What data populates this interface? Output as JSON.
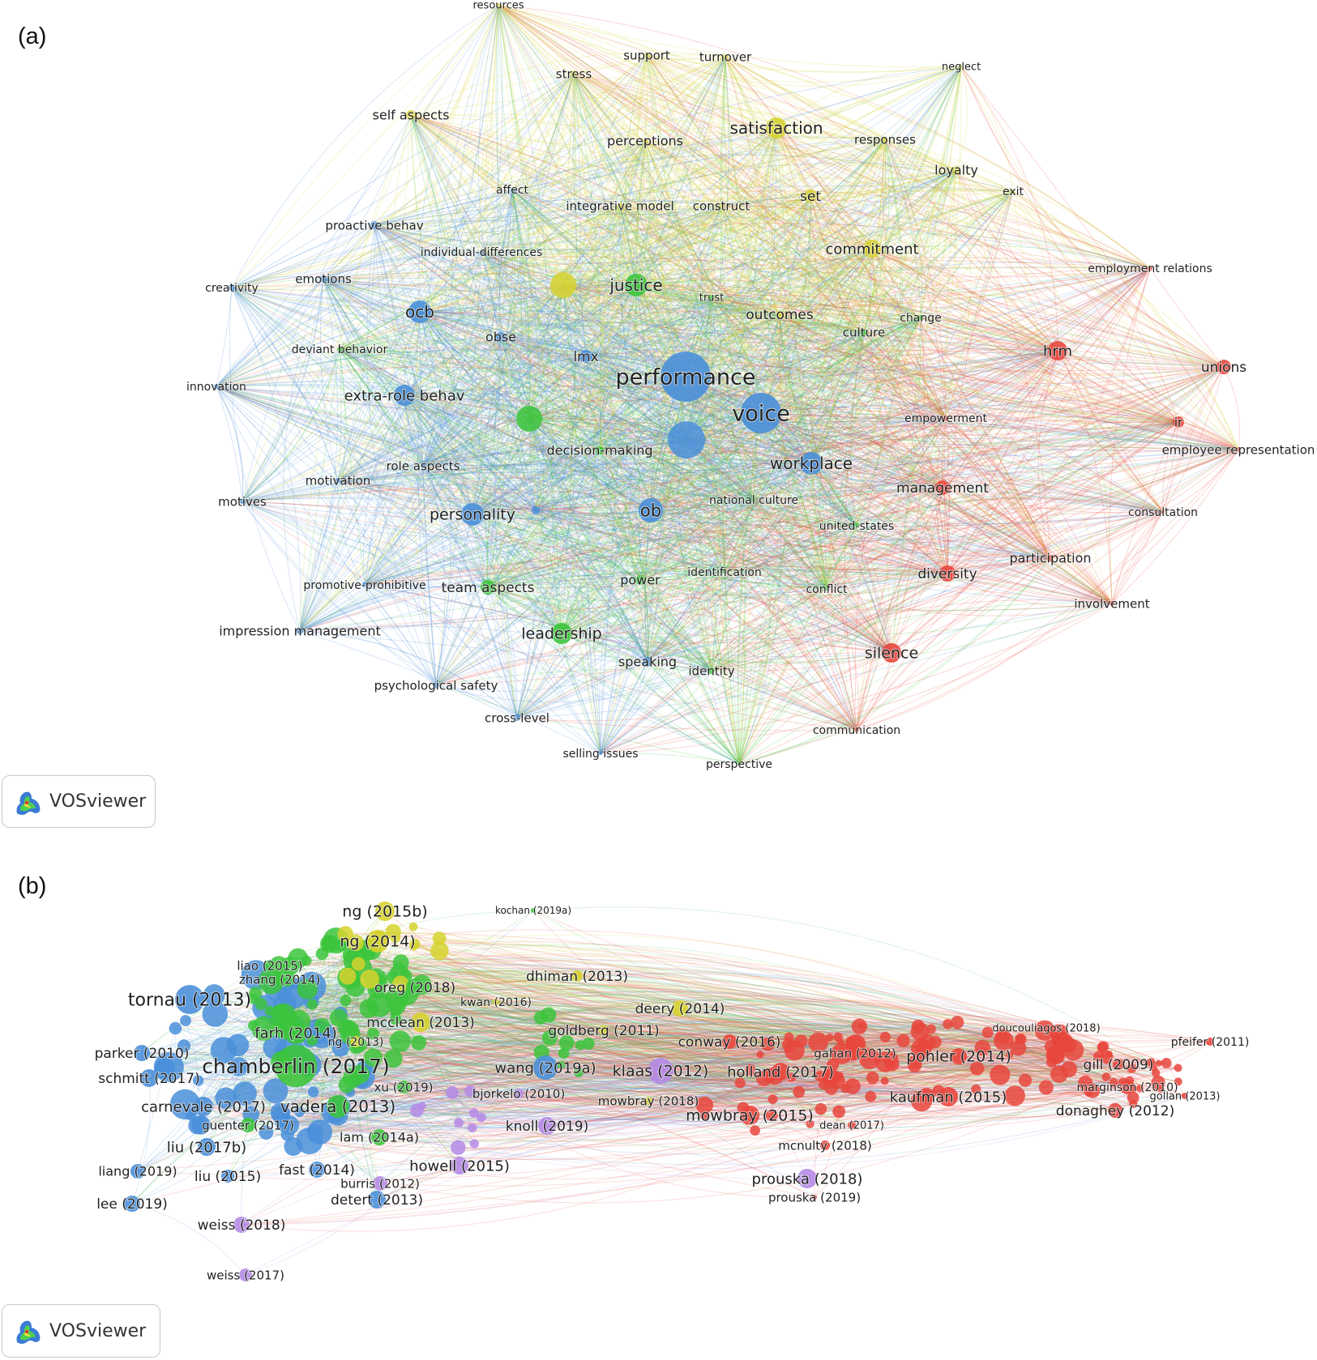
{
  "panel_a": {
    "letter": "(a)",
    "brand": "VOSviewer",
    "labels": [
      "resources",
      "support",
      "turnover",
      "stress",
      "neglect",
      "self aspects",
      "satisfaction",
      "perceptions",
      "responses",
      "loyalty",
      "affect",
      "integrative model",
      "construct",
      "set",
      "exit",
      "proactive behav",
      "individual-differences",
      "commitment",
      "employment relations",
      "creativity",
      "emotions",
      "justice",
      "trust",
      "ocb",
      "outcomes",
      "change",
      "culture",
      "deviant behavior",
      "obse",
      "hrm",
      "lmx",
      "unions",
      "innovation",
      "performance",
      "extra-role behav",
      "voice",
      "empowerment",
      "ir",
      "employee representation",
      "decision-making",
      "workplace",
      "role aspects",
      "motivation",
      "management",
      "motives",
      "personality",
      "ob",
      "national culture",
      "united-states",
      "consultation",
      "participation",
      "identification",
      "diversity",
      "promotive-prohibitive",
      "team aspects",
      "power",
      "conflict",
      "involvement",
      "impression management",
      "leadership",
      "silence",
      "speaking",
      "identity",
      "psychological safety",
      "cross-level",
      "communication",
      "selling issues",
      "perspective"
    ]
  },
  "panel_b": {
    "letter": "(b)",
    "brand": "VOSviewer",
    "labels": [
      "ng (2015b)",
      "kochan (2019a)",
      "ng (2014)",
      "liao (2015)",
      "zhang (2014)",
      "dhiman (2013)",
      "oreg (2018)",
      "tornau (2013)",
      "kwan (2016)",
      "deery (2014)",
      "mcclean (2013)",
      "farh (2014)",
      "goldberg (2011)",
      "doucouliagos (2018)",
      "ng (2013)",
      "conway (2016)",
      "pfeifer (2011)",
      "parker (2010)",
      "pohler (2014)",
      "gahan (2012)",
      "chamberlin (2017)",
      "gill (2009)",
      "klaas (2012)",
      "holland (2017)",
      "wang (2019a)",
      "schmitt (2017)",
      "xu (2019)",
      "bjorkelo (2010)",
      "marginson (2010)",
      "gollan (2013)",
      "mowbray (2018)",
      "kaufman (2015)",
      "carnevale (2017)",
      "vadera (2013)",
      "donaghey (2012)",
      "mowbray (2015)",
      "guenter (2017)",
      "knoll (2019)",
      "dean (2017)",
      "lam (2014a)",
      "liu (2017b)",
      "mcnulty (2018)",
      "fast (2014)",
      "howell (2015)",
      "liang (2019)",
      "liu (2015)",
      "burris (2012)",
      "prouska (2018)",
      "prouska (2019)",
      "detert (2013)",
      "lee (2019)",
      "weiss (2018)",
      "weiss (2017)"
    ]
  },
  "colors": {
    "red": "#e8473d",
    "green": "#3cc43c",
    "blue": "#4a8fd9",
    "yellow": "#d6d22e",
    "purple": "#b58ae6"
  }
}
